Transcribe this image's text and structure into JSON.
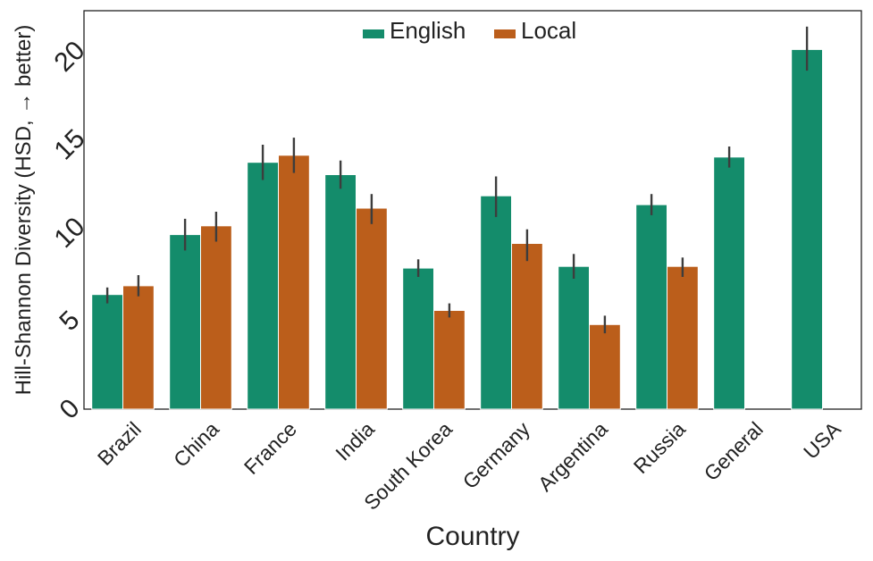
{
  "chart_data": {
    "type": "bar",
    "title": "",
    "xlabel": "Country",
    "ylabel": "Hill-Shannon Diversity (HSD, → better)",
    "ylim": [
      0,
      22.6
    ],
    "yticks": [
      0,
      5,
      10,
      15,
      20
    ],
    "categories": [
      "Brazil",
      "China",
      "France",
      "India",
      "South Korea",
      "Germany",
      "Argentina",
      "Russia",
      "General",
      "USA"
    ],
    "series": [
      {
        "name": "English",
        "color": "#148c6b",
        "values": [
          6.5,
          9.9,
          14.0,
          13.3,
          8.0,
          12.1,
          8.1,
          11.6,
          14.3,
          20.4
        ],
        "err_low": [
          6.0,
          9.0,
          13.0,
          12.5,
          7.5,
          10.9,
          7.4,
          11.0,
          13.7,
          19.2
        ],
        "err_high": [
          6.9,
          10.8,
          15.0,
          14.1,
          8.5,
          13.2,
          8.8,
          12.2,
          14.9,
          21.7
        ]
      },
      {
        "name": "Local",
        "color": "#bb5e1b",
        "values": [
          7.0,
          10.4,
          14.4,
          11.4,
          5.6,
          9.4,
          4.8,
          8.1,
          0,
          0
        ],
        "err_low": [
          6.4,
          9.5,
          13.4,
          10.5,
          5.2,
          8.4,
          4.3,
          7.5,
          null,
          null
        ],
        "err_high": [
          7.6,
          11.2,
          15.4,
          12.2,
          6.0,
          10.2,
          5.3,
          8.6,
          null,
          null
        ]
      }
    ],
    "legend": "top-center",
    "grid": false
  }
}
